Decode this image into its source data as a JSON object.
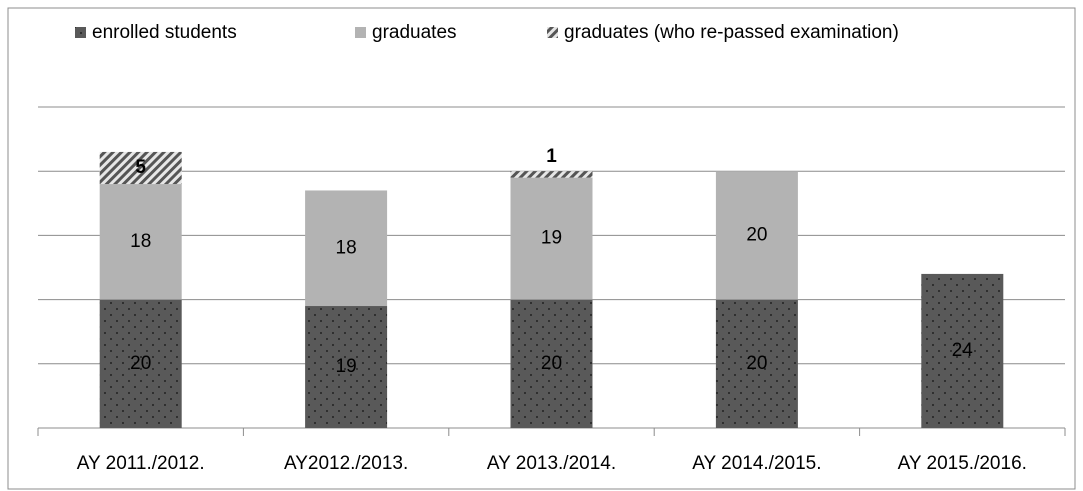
{
  "chart_data": {
    "type": "stacked_bar",
    "categories": [
      "AY 2011./2012.",
      "AY2012./2013.",
      "AY 2013./2014.",
      "AY 2014./2015.",
      "AY 2015./2016."
    ],
    "series": [
      {
        "name": "enrolled students",
        "color": "#595959",
        "values": [
          20,
          19,
          20,
          20,
          24
        ]
      },
      {
        "name": "graduates",
        "color": "#b3b3b3",
        "values": [
          18,
          18,
          19,
          20,
          null
        ]
      },
      {
        "name": "graduates (who re-passed examination)",
        "color": "#8c8c8c",
        "values": [
          5,
          null,
          1,
          null,
          null
        ]
      }
    ],
    "ylim": [
      0,
      50
    ],
    "yticks": [
      0,
      10,
      20,
      30,
      40,
      50
    ],
    "grid": true,
    "legend": "top"
  }
}
